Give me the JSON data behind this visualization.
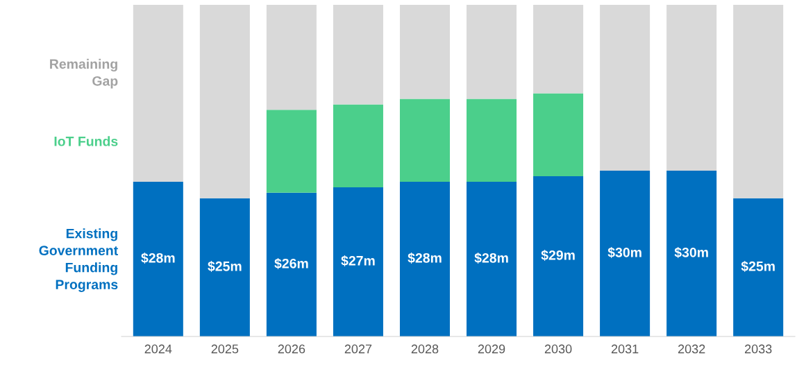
{
  "chart_data": {
    "type": "bar",
    "stacked": true,
    "categories": [
      "2024",
      "2025",
      "2026",
      "2027",
      "2028",
      "2029",
      "2030",
      "2031",
      "2032",
      "2033"
    ],
    "series": [
      {
        "name": "Existing Government Funding Programs",
        "color": "#0070c0",
        "values": [
          28,
          25,
          26,
          27,
          28,
          28,
          29,
          30,
          30,
          25
        ],
        "value_labels": [
          "$28m",
          "$25m",
          "$26m",
          "$27m",
          "$28m",
          "$28m",
          "$29m",
          "$30m",
          "$30m",
          "$25m"
        ]
      },
      {
        "name": "IoT Funds",
        "color": "#4bcf8b",
        "values": [
          null,
          null,
          15,
          15,
          15,
          15,
          15,
          null,
          null,
          null
        ]
      },
      {
        "name": "Remaining Gap",
        "color": "#d9d9d9",
        "values": [
          32,
          35,
          19,
          18,
          17,
          17,
          16,
          30,
          30,
          35
        ]
      }
    ],
    "ylim": [
      0,
      60
    ],
    "tick_labels": "x",
    "grid": false,
    "legend": false
  }
}
